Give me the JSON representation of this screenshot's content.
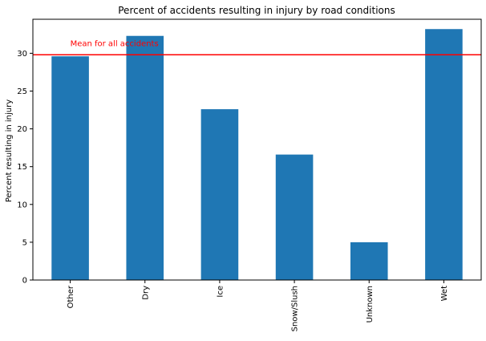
{
  "chart_data": {
    "type": "bar",
    "title": "Percent of accidents resulting in injury by road conditions",
    "xlabel": "",
    "ylabel": "Percent resulting in injury",
    "categories": [
      "Other",
      "Dry",
      "Ice",
      "Snow/Slush",
      "Unknown",
      "Wet"
    ],
    "values": [
      29.6,
      32.3,
      22.6,
      16.6,
      5.0,
      33.2
    ],
    "ylim": [
      0,
      34.5
    ],
    "yticks": [
      0,
      5,
      10,
      15,
      20,
      25,
      30
    ],
    "bar_color": "#1f77b4",
    "grid": false,
    "legend": "none",
    "reference_line": {
      "value": 29.8,
      "label": "Mean for all accidents",
      "color": "#ff0000"
    }
  }
}
